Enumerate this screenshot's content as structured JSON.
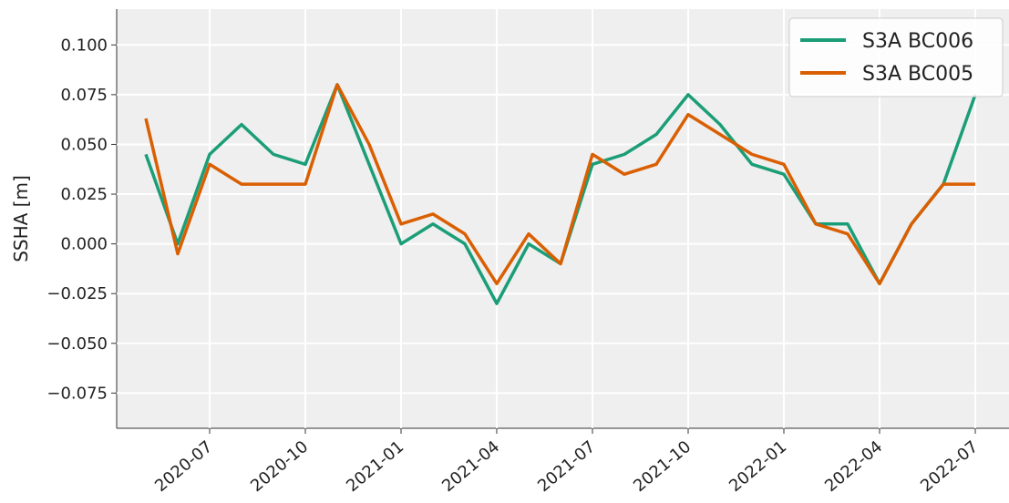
{
  "chart_data": {
    "type": "line",
    "ylabel": "SSHA [m]",
    "x": [
      "2020-05",
      "2020-06",
      "2020-07",
      "2020-08",
      "2020-09",
      "2020-10",
      "2020-11",
      "2020-12",
      "2021-01",
      "2021-02",
      "2021-03",
      "2021-04",
      "2021-05",
      "2021-06",
      "2021-07",
      "2021-08",
      "2021-09",
      "2021-10",
      "2021-11",
      "2021-12",
      "2022-01",
      "2022-02",
      "2022-03",
      "2022-04",
      "2022-05",
      "2022-06",
      "2022-07"
    ],
    "series": [
      {
        "name": "S3A BC006",
        "color": "#1b9e77",
        "values": [
          0.045,
          0.0,
          0.045,
          0.06,
          0.045,
          0.04,
          0.08,
          0.04,
          0.0,
          0.01,
          0.0,
          -0.03,
          0.0,
          -0.01,
          0.04,
          0.045,
          0.055,
          0.075,
          0.06,
          0.04,
          0.035,
          0.01,
          0.01,
          -0.02,
          0.01,
          0.03,
          0.075
        ]
      },
      {
        "name": "S3A BC005",
        "color": "#d95f02",
        "values": [
          0.063,
          -0.005,
          0.04,
          0.03,
          0.03,
          0.03,
          0.08,
          0.05,
          0.01,
          0.015,
          0.005,
          -0.02,
          0.005,
          -0.01,
          0.045,
          0.035,
          0.04,
          0.065,
          0.055,
          0.045,
          0.04,
          0.01,
          0.005,
          -0.02,
          0.01,
          0.03,
          0.03
        ]
      }
    ],
    "xticks": [
      "2020-07",
      "2020-10",
      "2021-01",
      "2021-04",
      "2021-07",
      "2021-10",
      "2022-01",
      "2022-04",
      "2022-07"
    ],
    "ylim": [
      -0.0927,
      0.118
    ],
    "yticks": [
      {
        "value": -0.075,
        "label": "−0.075"
      },
      {
        "value": -0.05,
        "label": "−0.050"
      },
      {
        "value": -0.025,
        "label": "−0.025"
      },
      {
        "value": 0,
        "label": "0.000"
      },
      {
        "value": 0.025,
        "label": "0.025"
      },
      {
        "value": 0.05,
        "label": "0.050"
      },
      {
        "value": 0.075,
        "label": "0.075"
      },
      {
        "value": 0.1,
        "label": "0.100"
      }
    ],
    "grid": true,
    "legend": "upper right"
  }
}
